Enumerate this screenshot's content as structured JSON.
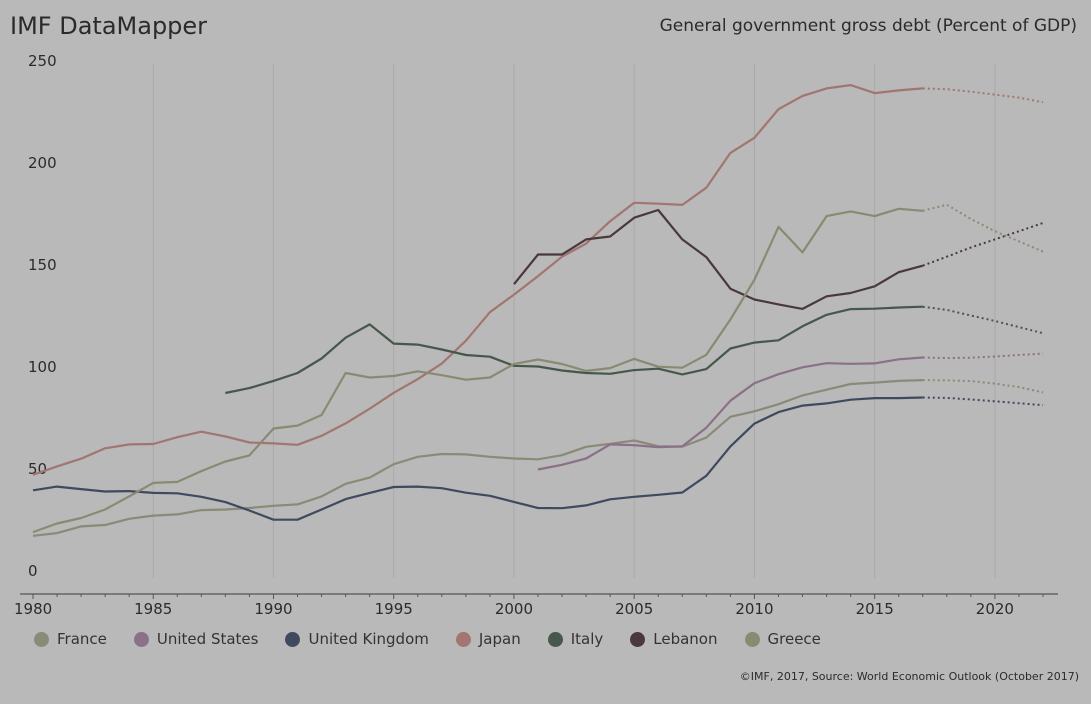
{
  "header": {
    "brand": "IMF DataMapper",
    "title": "General government gross debt (Percent of GDP)"
  },
  "footer": {
    "source": "©IMF, 2017, Source: World Economic Outlook (October 2017)"
  },
  "chart_data": {
    "type": "line",
    "title": "General government gross debt (Percent of GDP)",
    "xlabel": "",
    "ylabel": "",
    "xlim": [
      1980,
      2022
    ],
    "ylim": [
      0,
      250
    ],
    "x_ticks": [
      1980,
      1985,
      1990,
      1995,
      2000,
      2005,
      2010,
      2015,
      2020
    ],
    "y_ticks": [
      0,
      50,
      100,
      150,
      200,
      250
    ],
    "grid": "vertical",
    "legend_position": "bottom",
    "projection_start": 2017,
    "series": [
      {
        "name": "France",
        "color": "#8a8a78",
        "points": [
          [
            1980,
            20.7
          ],
          [
            1981,
            22.0
          ],
          [
            1982,
            25.3
          ],
          [
            1983,
            26.0
          ],
          [
            1984,
            29.0
          ],
          [
            1985,
            30.6
          ],
          [
            1986,
            31.2
          ],
          [
            1987,
            33.3
          ],
          [
            1988,
            33.6
          ],
          [
            1989,
            34.3
          ],
          [
            1990,
            35.4
          ],
          [
            1991,
            36.1
          ],
          [
            1992,
            40.0
          ],
          [
            1993,
            46.2
          ],
          [
            1994,
            49.2
          ],
          [
            1995,
            55.8
          ],
          [
            1996,
            59.4
          ],
          [
            1997,
            60.8
          ],
          [
            1998,
            60.6
          ],
          [
            1999,
            59.4
          ],
          [
            2000,
            58.6
          ],
          [
            2001,
            58.2
          ],
          [
            2002,
            60.2
          ],
          [
            2003,
            64.3
          ],
          [
            2004,
            65.8
          ],
          [
            2005,
            67.4
          ],
          [
            2006,
            64.6
          ],
          [
            2007,
            64.4
          ],
          [
            2008,
            68.8
          ],
          [
            2009,
            79.0
          ],
          [
            2010,
            81.7
          ],
          [
            2011,
            85.2
          ],
          [
            2012,
            89.5
          ],
          [
            2013,
            92.3
          ],
          [
            2014,
            95.1
          ],
          [
            2015,
            95.8
          ],
          [
            2016,
            96.6
          ],
          [
            2017,
            97.0
          ],
          [
            2018,
            96.9
          ],
          [
            2019,
            96.5
          ],
          [
            2020,
            95.3
          ],
          [
            2021,
            93.6
          ],
          [
            2022,
            91.0
          ]
        ]
      },
      {
        "name": "United States",
        "color": "#8a7088",
        "points": [
          [
            2001,
            53.2
          ],
          [
            2002,
            55.5
          ],
          [
            2003,
            58.6
          ],
          [
            2004,
            65.5
          ],
          [
            2005,
            65.1
          ],
          [
            2006,
            64.1
          ],
          [
            2007,
            64.5
          ],
          [
            2008,
            73.7
          ],
          [
            2009,
            86.9
          ],
          [
            2010,
            95.5
          ],
          [
            2011,
            99.9
          ],
          [
            2012,
            103.3
          ],
          [
            2013,
            105.3
          ],
          [
            2014,
            105.0
          ],
          [
            2015,
            105.2
          ],
          [
            2016,
            107.2
          ],
          [
            2017,
            108.1
          ],
          [
            2018,
            107.8
          ],
          [
            2019,
            108.0
          ],
          [
            2020,
            108.6
          ],
          [
            2021,
            109.3
          ],
          [
            2022,
            110.0
          ]
        ]
      },
      {
        "name": "United Kingdom",
        "color": "#3f4a5e",
        "points": [
          [
            1980,
            43.0
          ],
          [
            1981,
            44.8
          ],
          [
            1982,
            43.6
          ],
          [
            1983,
            42.4
          ],
          [
            1984,
            42.6
          ],
          [
            1985,
            41.7
          ],
          [
            1986,
            41.5
          ],
          [
            1987,
            39.8
          ],
          [
            1988,
            37.2
          ],
          [
            1989,
            33.1
          ],
          [
            1990,
            28.6
          ],
          [
            1991,
            28.6
          ],
          [
            1992,
            33.6
          ],
          [
            1993,
            38.7
          ],
          [
            1994,
            41.7
          ],
          [
            1995,
            44.6
          ],
          [
            1996,
            44.8
          ],
          [
            1997,
            44.0
          ],
          [
            1998,
            41.8
          ],
          [
            1999,
            40.3
          ],
          [
            2000,
            37.3
          ],
          [
            2001,
            34.3
          ],
          [
            2002,
            34.2
          ],
          [
            2003,
            35.6
          ],
          [
            2004,
            38.6
          ],
          [
            2005,
            39.8
          ],
          [
            2006,
            40.8
          ],
          [
            2007,
            41.9
          ],
          [
            2008,
            50.1
          ],
          [
            2009,
            64.5
          ],
          [
            2010,
            75.7
          ],
          [
            2011,
            81.3
          ],
          [
            2012,
            84.5
          ],
          [
            2013,
            85.6
          ],
          [
            2014,
            87.4
          ],
          [
            2015,
            88.2
          ],
          [
            2016,
            88.2
          ],
          [
            2017,
            88.5
          ],
          [
            2018,
            88.3
          ],
          [
            2019,
            87.5
          ],
          [
            2020,
            86.6
          ],
          [
            2021,
            85.7
          ],
          [
            2022,
            84.7
          ]
        ]
      },
      {
        "name": "Japan",
        "color": "#a27570",
        "points": [
          [
            1980,
            50.6
          ],
          [
            1981,
            54.7
          ],
          [
            1982,
            58.5
          ],
          [
            1983,
            63.6
          ],
          [
            1984,
            65.5
          ],
          [
            1985,
            65.7
          ],
          [
            1986,
            69.0
          ],
          [
            1987,
            71.7
          ],
          [
            1988,
            69.4
          ],
          [
            1989,
            66.4
          ],
          [
            1990,
            66.0
          ],
          [
            1991,
            65.3
          ],
          [
            1992,
            69.7
          ],
          [
            1993,
            75.8
          ],
          [
            1994,
            83.0
          ],
          [
            1995,
            90.8
          ],
          [
            1996,
            97.5
          ],
          [
            1997,
            105.1
          ],
          [
            1998,
            116.3
          ],
          [
            1999,
            130.3
          ],
          [
            2000,
            138.9
          ],
          [
            2001,
            148.0
          ],
          [
            2002,
            157.5
          ],
          [
            2003,
            163.9
          ],
          [
            2004,
            174.9
          ],
          [
            2005,
            183.9
          ],
          [
            2006,
            183.5
          ],
          [
            2007,
            182.9
          ],
          [
            2008,
            191.3
          ],
          [
            2009,
            208.4
          ],
          [
            2010,
            215.8
          ],
          [
            2011,
            229.8
          ],
          [
            2012,
            236.3
          ],
          [
            2013,
            240.0
          ],
          [
            2014,
            241.6
          ],
          [
            2015,
            237.7
          ],
          [
            2016,
            239.0
          ],
          [
            2017,
            240.0
          ],
          [
            2018,
            239.6
          ],
          [
            2019,
            238.4
          ],
          [
            2020,
            236.9
          ],
          [
            2021,
            235.5
          ],
          [
            2022,
            233.2
          ]
        ]
      },
      {
        "name": "Italy",
        "color": "#46574b",
        "points": [
          [
            1988,
            90.7
          ],
          [
            1989,
            93.1
          ],
          [
            1990,
            96.6
          ],
          [
            1991,
            100.5
          ],
          [
            1992,
            107.6
          ],
          [
            1993,
            117.8
          ],
          [
            1994,
            124.3
          ],
          [
            1995,
            114.9
          ],
          [
            1996,
            114.4
          ],
          [
            1997,
            112.0
          ],
          [
            1998,
            109.3
          ],
          [
            1999,
            108.5
          ],
          [
            2000,
            104.0
          ],
          [
            2001,
            103.7
          ],
          [
            2002,
            101.7
          ],
          [
            2003,
            100.5
          ],
          [
            2004,
            100.1
          ],
          [
            2005,
            101.9
          ],
          [
            2006,
            102.6
          ],
          [
            2007,
            99.8
          ],
          [
            2008,
            102.4
          ],
          [
            2009,
            112.5
          ],
          [
            2010,
            115.4
          ],
          [
            2011,
            116.5
          ],
          [
            2012,
            123.4
          ],
          [
            2013,
            129.0
          ],
          [
            2014,
            131.8
          ],
          [
            2015,
            132.0
          ],
          [
            2016,
            132.6
          ],
          [
            2017,
            133.0
          ],
          [
            2018,
            131.4
          ],
          [
            2019,
            128.7
          ],
          [
            2020,
            126.0
          ],
          [
            2021,
            123.0
          ],
          [
            2022,
            120.0
          ]
        ]
      },
      {
        "name": "Lebanon",
        "color": "#4a383e",
        "points": [
          [
            2000,
            144.0
          ],
          [
            2001,
            158.6
          ],
          [
            2002,
            158.6
          ],
          [
            2003,
            166.0
          ],
          [
            2004,
            167.4
          ],
          [
            2005,
            176.6
          ],
          [
            2006,
            180.4
          ],
          [
            2007,
            166.0
          ],
          [
            2008,
            157.3
          ],
          [
            2009,
            141.8
          ],
          [
            2010,
            136.5
          ],
          [
            2011,
            134.1
          ],
          [
            2012,
            131.9
          ],
          [
            2013,
            138.1
          ],
          [
            2014,
            139.7
          ],
          [
            2015,
            143.0
          ],
          [
            2016,
            149.9
          ],
          [
            2017,
            153.1
          ],
          [
            2018,
            157.5
          ],
          [
            2019,
            162.0
          ],
          [
            2020,
            166.0
          ],
          [
            2021,
            170.0
          ],
          [
            2022,
            174.0
          ]
        ]
      },
      {
        "name": "Greece",
        "color": "#8a8a72",
        "points": [
          [
            1980,
            22.5
          ],
          [
            1981,
            26.7
          ],
          [
            1982,
            29.4
          ],
          [
            1983,
            33.6
          ],
          [
            1984,
            40.0
          ],
          [
            1985,
            46.6
          ],
          [
            1986,
            47.1
          ],
          [
            1987,
            52.4
          ],
          [
            1988,
            57.1
          ],
          [
            1989,
            60.1
          ],
          [
            1990,
            73.3
          ],
          [
            1991,
            74.7
          ],
          [
            1992,
            79.9
          ],
          [
            1993,
            100.5
          ],
          [
            1994,
            98.3
          ],
          [
            1995,
            99.0
          ],
          [
            1996,
            101.3
          ],
          [
            1997,
            99.4
          ],
          [
            1998,
            97.2
          ],
          [
            1999,
            98.3
          ],
          [
            2000,
            104.9
          ],
          [
            2001,
            107.1
          ],
          [
            2002,
            104.9
          ],
          [
            2003,
            101.5
          ],
          [
            2004,
            102.9
          ],
          [
            2005,
            107.4
          ],
          [
            2006,
            103.6
          ],
          [
            2007,
            103.1
          ],
          [
            2008,
            109.4
          ],
          [
            2009,
            126.7
          ],
          [
            2010,
            146.2
          ],
          [
            2011,
            172.1
          ],
          [
            2012,
            159.6
          ],
          [
            2013,
            177.4
          ],
          [
            2014,
            179.7
          ],
          [
            2015,
            177.4
          ],
          [
            2016,
            181.0
          ],
          [
            2017,
            180.0
          ],
          [
            2018,
            183.0
          ],
          [
            2019,
            176.0
          ],
          [
            2020,
            170.0
          ],
          [
            2021,
            165.0
          ],
          [
            2022,
            160.0
          ]
        ]
      }
    ]
  }
}
